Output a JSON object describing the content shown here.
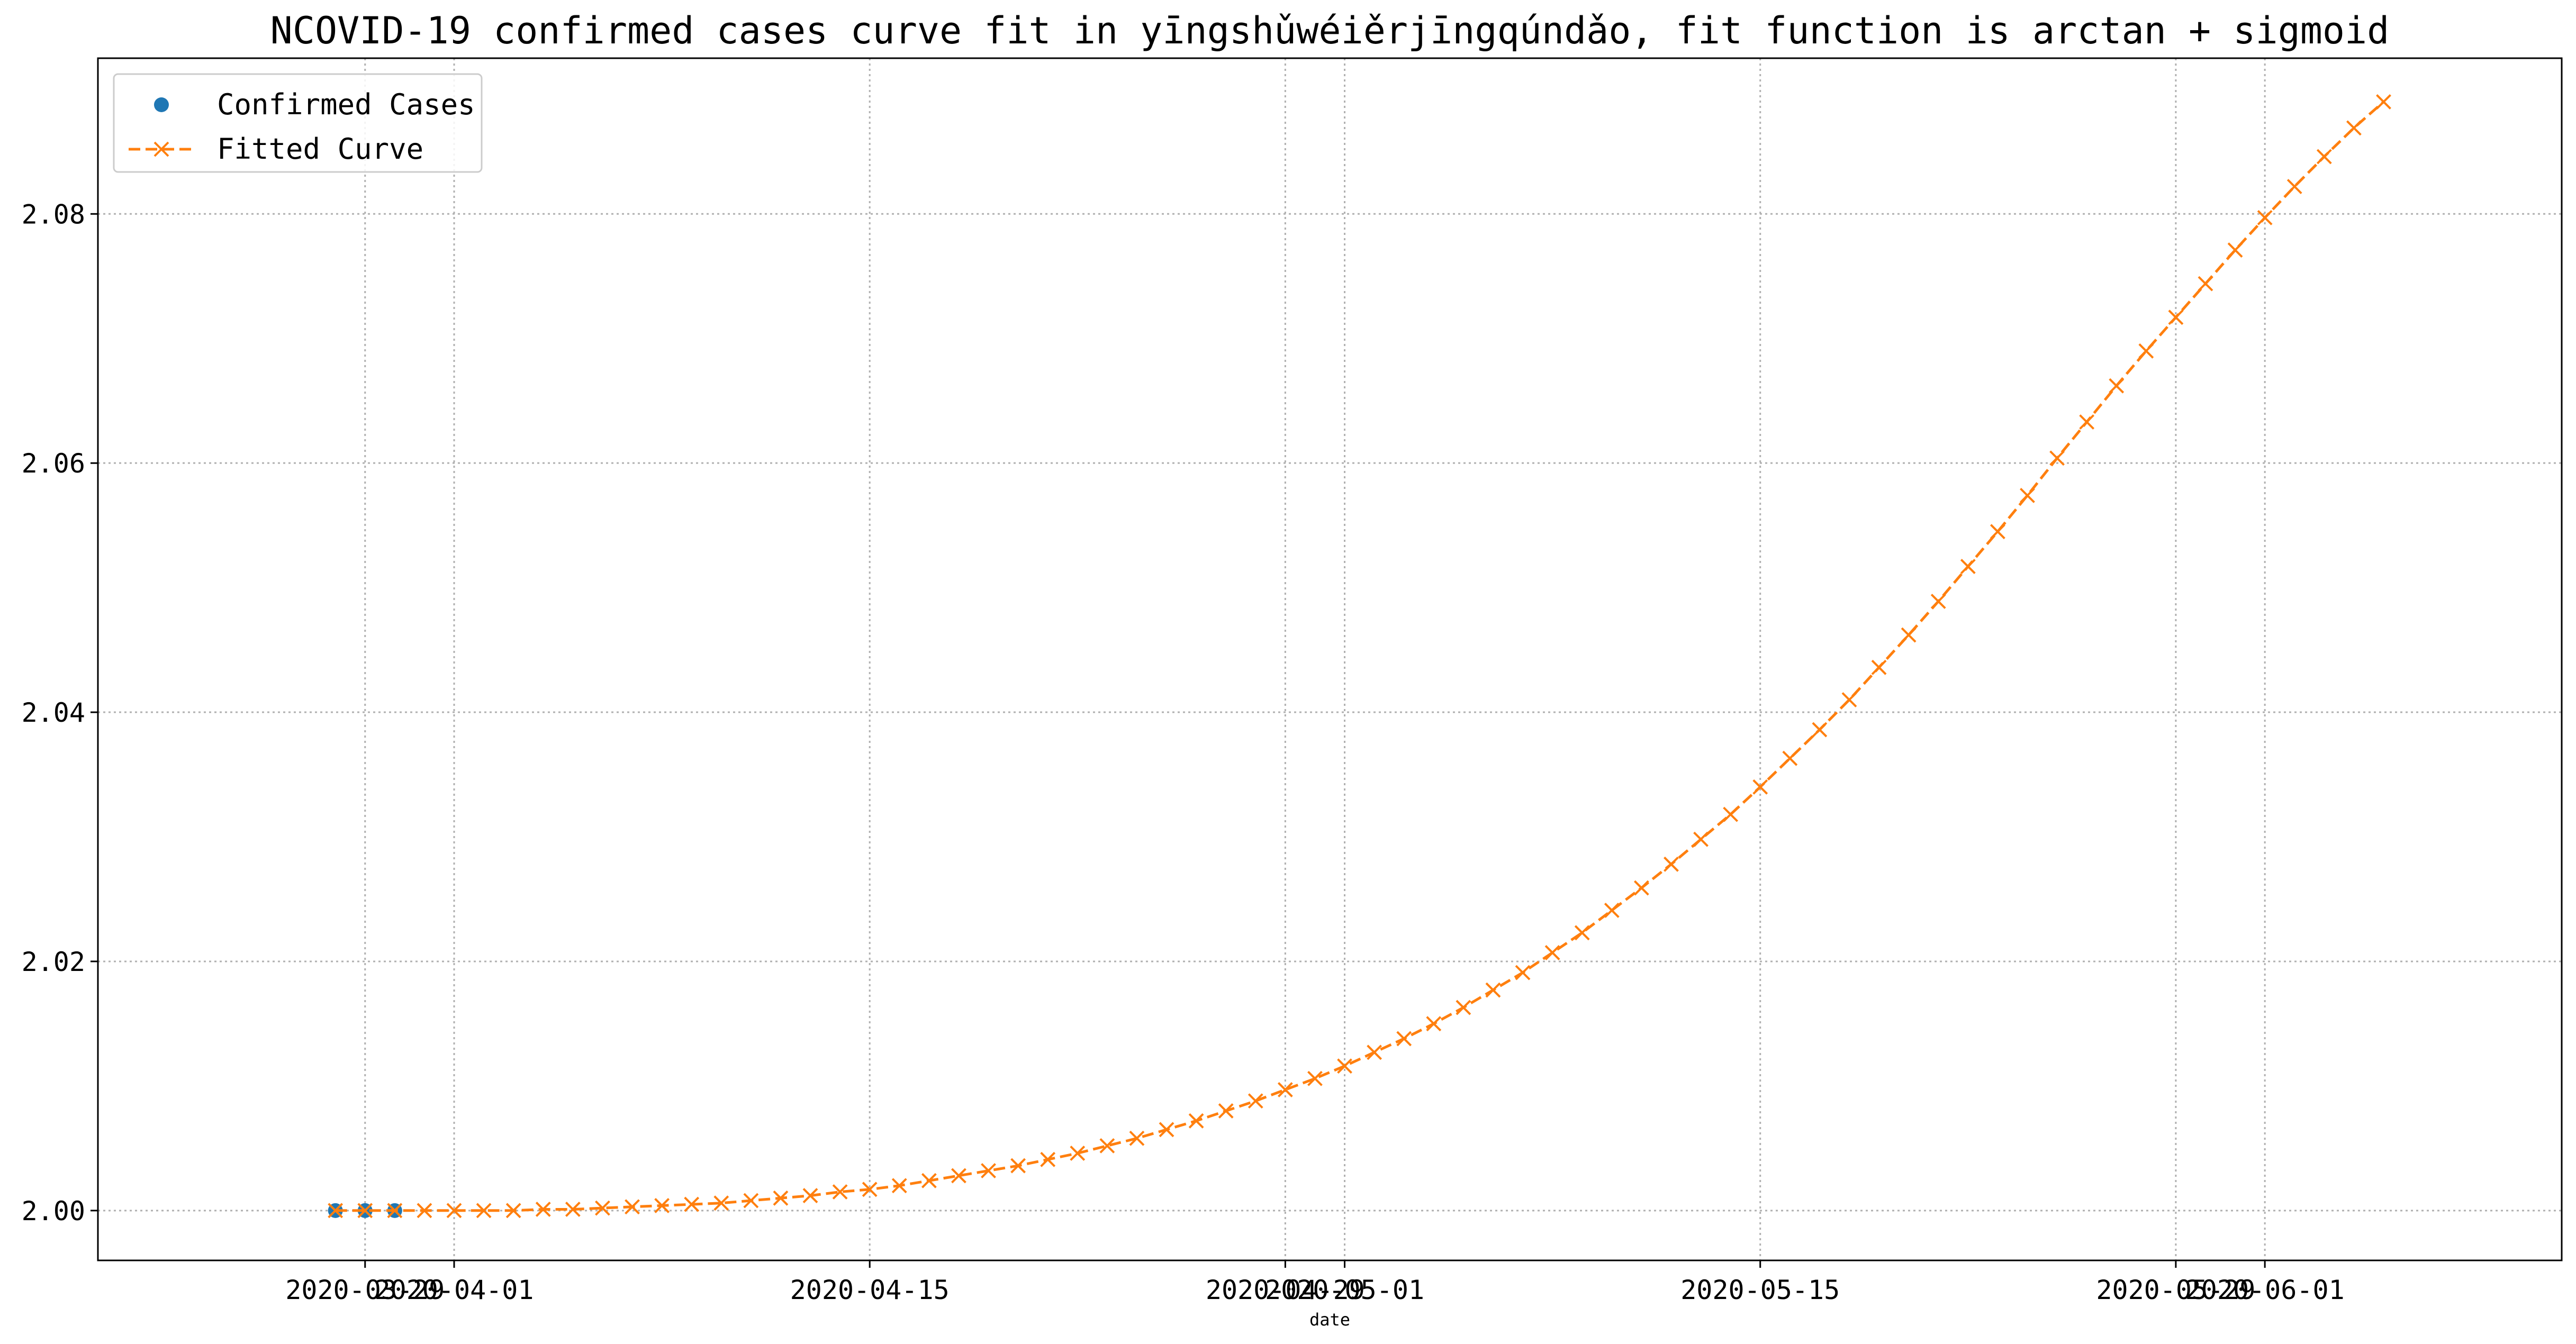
{
  "chart_data": {
    "type": "line",
    "title": "NCOVID-19 confirmed cases curve fit in yīngshǔwéiěrjīngqúndǎo, fit function is arctan + sigmoid",
    "xlabel": "date",
    "ylabel": "",
    "xlim": [
      "2020-03-20",
      "2020-06-11"
    ],
    "ylim": [
      1.996,
      2.0925
    ],
    "grid": true,
    "legend_position": "top-left",
    "x_ticks": [
      {
        "date": "2020-03-29",
        "label": "2020-03-29"
      },
      {
        "date": "2020-04-01",
        "label": "2020-04-01"
      },
      {
        "date": "2020-04-15",
        "label": "2020-04-15"
      },
      {
        "date": "2020-04-29",
        "label": "2020-04-29"
      },
      {
        "date": "2020-05-01",
        "label": "2020-05-01"
      },
      {
        "date": "2020-05-15",
        "label": "2020-05-15"
      },
      {
        "date": "2020-05-29",
        "label": "2020-05-29"
      },
      {
        "date": "2020-06-01",
        "label": "2020-06-01"
      }
    ],
    "y_ticks": [
      {
        "value": 2.0,
        "label": "2.00"
      },
      {
        "value": 2.02,
        "label": "2.02"
      },
      {
        "value": 2.04,
        "label": "2.04"
      },
      {
        "value": 2.06,
        "label": "2.06"
      },
      {
        "value": 2.08,
        "label": "2.08"
      }
    ],
    "series": [
      {
        "name": "Confirmed Cases",
        "style": "markers",
        "marker": "circle",
        "color": "#1f77b4",
        "x": [
          "2020-03-28",
          "2020-03-29",
          "2020-03-30"
        ],
        "y": [
          2.0,
          2.0,
          2.0
        ]
      },
      {
        "name": "Fitted Curve",
        "style": "dashed-line-with-x-markers",
        "marker": "x",
        "color": "#ff7f0e",
        "x": [
          "2020-03-28",
          "2020-03-29",
          "2020-03-30",
          "2020-03-31",
          "2020-04-01",
          "2020-04-02",
          "2020-04-03",
          "2020-04-04",
          "2020-04-05",
          "2020-04-06",
          "2020-04-07",
          "2020-04-08",
          "2020-04-09",
          "2020-04-10",
          "2020-04-11",
          "2020-04-12",
          "2020-04-13",
          "2020-04-14",
          "2020-04-15",
          "2020-04-16",
          "2020-04-17",
          "2020-04-18",
          "2020-04-19",
          "2020-04-20",
          "2020-04-21",
          "2020-04-22",
          "2020-04-23",
          "2020-04-24",
          "2020-04-25",
          "2020-04-26",
          "2020-04-27",
          "2020-04-28",
          "2020-04-29",
          "2020-04-30",
          "2020-05-01",
          "2020-05-02",
          "2020-05-03",
          "2020-05-04",
          "2020-05-05",
          "2020-05-06",
          "2020-05-07",
          "2020-05-08",
          "2020-05-09",
          "2020-05-10",
          "2020-05-11",
          "2020-05-12",
          "2020-05-13",
          "2020-05-14",
          "2020-05-15",
          "2020-05-16",
          "2020-05-17",
          "2020-05-18",
          "2020-05-19",
          "2020-05-20",
          "2020-05-21",
          "2020-05-22",
          "2020-05-23",
          "2020-05-24",
          "2020-05-25",
          "2020-05-26",
          "2020-05-27",
          "2020-05-28",
          "2020-05-29",
          "2020-05-30",
          "2020-05-31",
          "2020-06-01",
          "2020-06-02",
          "2020-06-03",
          "2020-06-04",
          "2020-06-05"
        ],
        "y": [
          2.0,
          2.0,
          2.0,
          2.0,
          2.0,
          2.0,
          2.0,
          2.0001,
          2.0001,
          2.0002,
          2.0003,
          2.0004,
          2.0005,
          2.0006,
          2.0008,
          2.001,
          2.0012,
          2.0015,
          2.0017,
          2.002,
          2.0024,
          2.0028,
          2.0032,
          2.0036,
          2.0041,
          2.0046,
          2.0052,
          2.0058,
          2.0065,
          2.0072,
          2.008,
          2.0088,
          2.0097,
          2.0106,
          2.0116,
          2.0127,
          2.0138,
          2.015,
          2.0163,
          2.0177,
          2.0191,
          2.0207,
          2.0223,
          2.0241,
          2.0259,
          2.0278,
          2.0298,
          2.0318,
          2.034,
          2.0363,
          2.0386,
          2.041,
          2.0436,
          2.0462,
          2.0489,
          2.0517,
          2.0545,
          2.0574,
          2.0604,
          2.0633,
          2.0662,
          2.069,
          2.0717,
          2.0744,
          2.0771,
          2.0797,
          2.0822,
          2.0846,
          2.0869,
          2.089
        ]
      }
    ]
  }
}
